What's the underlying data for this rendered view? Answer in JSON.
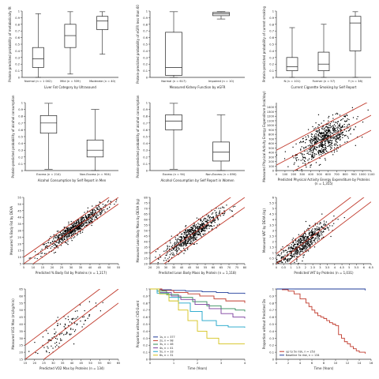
{
  "chart_data": [
    {
      "type": "box",
      "name": "p1",
      "ylabel": "Protein-predicted probability of metabolically fit",
      "xlabel": "Liver Fat Category by Ultrasound",
      "ylim": [
        0,
        1
      ],
      "yticks": [
        0,
        0.1,
        0.2,
        0.3,
        0.4,
        0.5,
        0.6,
        0.7,
        0.8,
        0.9,
        1
      ],
      "categories": [
        "Normal (n = 1 002)",
        "Mild (n = 539)",
        "Moderate (n = 40)"
      ],
      "boxes": [
        {
          "min": 0.0,
          "q1": 0.15,
          "median": 0.28,
          "q3": 0.45,
          "max": 0.96
        },
        {
          "min": 0.05,
          "q1": 0.45,
          "median": 0.63,
          "q3": 0.8,
          "max": 0.99
        },
        {
          "min": 0.35,
          "q1": 0.72,
          "median": 0.85,
          "q3": 0.92,
          "max": 0.99
        }
      ]
    },
    {
      "type": "box",
      "name": "p2",
      "ylabel": "Protein-predicted probability of eGFR less than 60",
      "xlabel": "Measured Kidney Function by eGFR",
      "ylim": [
        0,
        1
      ],
      "yticks": [
        0,
        0.1,
        0.2,
        0.3,
        0.4,
        0.5,
        0.6,
        0.7,
        0.8,
        0.9,
        1
      ],
      "categories": [
        "Normal (n = 617)",
        "Impaired (n = 10)"
      ],
      "boxes": [
        {
          "min": 0.0,
          "q1": 0.03,
          "median": 0.15,
          "q3": 0.68,
          "max": 0.99
        },
        {
          "min": 0.88,
          "q1": 0.93,
          "median": 0.96,
          "q3": 0.98,
          "max": 0.99
        }
      ]
    },
    {
      "type": "box",
      "name": "p3",
      "ylabel": "Protein-predicted probability of current smoking",
      "xlabel": "Current Cigarette Smoking by Self Report",
      "ylim": [
        0,
        1
      ],
      "yticks": [
        0,
        0.1,
        0.2,
        0.3,
        0.4,
        0.5,
        0.6,
        0.7,
        0.8,
        0.9,
        1
      ],
      "categories": [
        "N (n = 101)",
        "Former (n = 57)",
        "Y (n = 38)"
      ],
      "boxes": [
        {
          "min": 0.0,
          "q1": 0.1,
          "median": 0.16,
          "q3": 0.3,
          "max": 0.75
        },
        {
          "min": 0.0,
          "q1": 0.1,
          "median": 0.2,
          "q3": 0.38,
          "max": 0.8
        },
        {
          "min": 0.0,
          "q1": 0.4,
          "median": 0.82,
          "q3": 0.92,
          "max": 0.99
        }
      ]
    },
    {
      "type": "box",
      "name": "p4",
      "ylabel": "Protein-predicted probability of alcohol consumption",
      "xlabel": "Alcohol Consumption by Self Report in Men",
      "ylim": [
        0,
        1
      ],
      "yticks": [
        0,
        0.1,
        0.2,
        0.3,
        0.4,
        0.5,
        0.6,
        0.7,
        0.8,
        0.9,
        1
      ],
      "categories": [
        "Excess (n = 214)",
        "Non-Excess (n = 904)"
      ],
      "boxes": [
        {
          "min": 0.02,
          "q1": 0.55,
          "median": 0.7,
          "q3": 0.81,
          "max": 0.99
        },
        {
          "min": 0.0,
          "q1": 0.2,
          "median": 0.3,
          "q3": 0.45,
          "max": 0.9
        }
      ]
    },
    {
      "type": "box",
      "name": "p5",
      "ylabel": "Protein-predicted probability of alcohol consumption",
      "xlabel": "Alcohol Consumption by Self Report in Women",
      "ylim": [
        0,
        1
      ],
      "yticks": [
        0,
        0.1,
        0.2,
        0.3,
        0.4,
        0.5,
        0.6,
        0.7,
        0.8,
        0.9,
        1
      ],
      "categories": [
        "Excess (n = 94)",
        "Non-Excess (n = 890)"
      ],
      "boxes": [
        {
          "min": 0.02,
          "q1": 0.6,
          "median": 0.73,
          "q3": 0.82,
          "max": 0.99
        },
        {
          "min": 0.0,
          "q1": 0.14,
          "median": 0.27,
          "q3": 0.42,
          "max": 0.82
        }
      ]
    },
    {
      "type": "scatter",
      "name": "p6",
      "ylabel": "Measured Physical Activity Energy Expenditure (kcal/day)",
      "xlabel": "Predicted Physical Activity Energy Expenditure by Proteins",
      "xnote": "(n = 1,355)",
      "xlim": [
        0,
        1100
      ],
      "ylim": [
        0,
        1500
      ],
      "xticks": [
        0,
        100,
        200,
        300,
        400,
        500,
        600,
        700,
        800,
        900,
        1000,
        1100
      ],
      "yticks": [
        0,
        100,
        200,
        300,
        400,
        500,
        600,
        700,
        800,
        900,
        1000,
        1100,
        1200,
        1300,
        1400
      ],
      "ci": {
        "intercept": 120,
        "slope": 1.0,
        "band": 330
      },
      "cloud": {
        "n": 650,
        "xmean": 560,
        "xsd": 160,
        "slope": 1.0,
        "intercept": 120,
        "sd": 190
      }
    },
    {
      "type": "scatter",
      "name": "p7",
      "ylabel": "Measured % Body Fat by DEXA",
      "xlabel": "Predicted % Body Fat by Proteins (n = 1,117)",
      "xlim": [
        5,
        55
      ],
      "ylim": [
        5,
        55
      ],
      "xticks": [
        5,
        10,
        15,
        20,
        25,
        30,
        35,
        40,
        45,
        50,
        55
      ],
      "yticks": [
        5,
        10,
        15,
        20,
        25,
        30,
        35,
        40,
        45,
        50,
        55
      ],
      "ci": {
        "intercept": 0,
        "slope": 1.0,
        "band": 5
      },
      "cloud": {
        "n": 650,
        "xmean": 32,
        "xsd": 8,
        "slope": 1.0,
        "intercept": 0,
        "sd": 2.8
      }
    },
    {
      "type": "scatter",
      "name": "p8",
      "ylabel": "Measured Lean Body Mass by DEXA (kg)",
      "xlabel": "Predicted Lean Body Mass by Protein (n = 1,118)",
      "xlim": [
        20,
        80
      ],
      "ylim": [
        20,
        80
      ],
      "xticks": [
        20,
        25,
        30,
        35,
        40,
        45,
        50,
        55,
        60,
        65,
        70,
        75,
        80
      ],
      "yticks": [
        20,
        25,
        30,
        35,
        40,
        45,
        50,
        55,
        60,
        65,
        70,
        75,
        80
      ],
      "ci": {
        "intercept": 0,
        "slope": 1.0,
        "band": 9
      },
      "cloud": {
        "n": 600,
        "xmean": 47,
        "xsd": 9,
        "slope": 1.0,
        "intercept": 0,
        "sd": 4.5
      }
    },
    {
      "type": "scatter",
      "name": "p9",
      "ylabel": "Measured VAT by DEXA (kg)",
      "xlabel": "Predicted VAT by Proteins (n = 1,031)",
      "xlim": [
        0,
        6.5
      ],
      "ylim": [
        0,
        6
      ],
      "xticks": [
        0,
        0.5,
        1,
        1.5,
        2,
        2.5,
        3,
        3.5,
        4,
        4.5,
        5,
        5.5,
        6,
        6.5
      ],
      "yticks": [
        0,
        0.5,
        1,
        1.5,
        2,
        2.5,
        3,
        3.5,
        4,
        4.5,
        5,
        5.5,
        6
      ],
      "ci": {
        "intercept": 0,
        "slope": 1.0,
        "band": 0.9
      },
      "cloud": {
        "n": 550,
        "xmean": 1.7,
        "xsd": 0.9,
        "slope": 1.0,
        "intercept": 0,
        "sd": 0.5
      }
    },
    {
      "type": "scatter",
      "name": "p10",
      "ylabel": "Measured VO2 Max (mL/kg/min)",
      "xlabel": "Predicted VO2 Max by Proteins (n = 134)",
      "xlim": [
        15,
        65
      ],
      "ylim": [
        15,
        65
      ],
      "xticks": [
        15,
        20,
        25,
        30,
        35,
        40,
        45,
        50,
        55,
        60,
        65
      ],
      "yticks": [
        15,
        20,
        25,
        30,
        35,
        40,
        45,
        50,
        55,
        60,
        65
      ],
      "ci": {
        "intercept": 0,
        "slope": 1.0,
        "band": 10
      },
      "cloud": {
        "n": 110,
        "xmean": 36,
        "xsd": 8,
        "slope": 1.0,
        "intercept": 0,
        "sd": 5
      }
    },
    {
      "type": "line",
      "name": "p11",
      "ylabel": "Proportion without CVD Event",
      "xlabel": "Time (Years)",
      "xlim": [
        0,
        4
      ],
      "ylim": [
        0,
        1
      ],
      "xticks": [
        0,
        1,
        2,
        3,
        4
      ],
      "yticks": [
        0,
        0.1,
        0.2,
        0.3,
        0.4,
        0.5,
        0.6,
        0.7,
        0.8,
        0.9,
        1
      ],
      "series": [
        {
          "name": "1s, n = 377",
          "color": "#1f3b9a",
          "x": [
            0,
            0.4,
            0.9,
            1.5,
            2.2,
            2.8,
            3.3,
            4
          ],
          "y": [
            1,
            0.99,
            0.98,
            0.97,
            0.96,
            0.95,
            0.94,
            0.93
          ]
        },
        {
          "name": "2s, n = 98",
          "color": "#c0392b",
          "x": [
            0,
            0.5,
            1.0,
            1.6,
            2.1,
            2.7,
            3.2,
            4
          ],
          "y": [
            1,
            0.98,
            0.95,
            0.93,
            0.9,
            0.86,
            0.83,
            0.8
          ]
        },
        {
          "name": "3s, n = 46",
          "color": "#2e8b57",
          "x": [
            0,
            0.3,
            0.7,
            1.2,
            1.8,
            2.4,
            3.0,
            3.6,
            4
          ],
          "y": [
            1,
            0.97,
            0.92,
            0.88,
            0.82,
            0.76,
            0.72,
            0.7,
            0.68
          ]
        },
        {
          "name": "4s, n = 41",
          "color": "#7b3f9e",
          "x": [
            0,
            0.4,
            0.9,
            1.3,
            1.9,
            2.5,
            3.0,
            3.5,
            4
          ],
          "y": [
            1,
            0.95,
            0.9,
            0.85,
            0.78,
            0.72,
            0.65,
            0.6,
            0.58
          ]
        },
        {
          "name": "5s, n = 33",
          "color": "#1aa3c9",
          "x": [
            0,
            0.3,
            0.8,
            1.2,
            1.7,
            2.2,
            2.8,
            3.3,
            4
          ],
          "y": [
            1,
            0.94,
            0.88,
            0.8,
            0.68,
            0.55,
            0.48,
            0.46,
            0.45
          ]
        },
        {
          "name": "6s, n = 31",
          "color": "#d4c21a",
          "x": [
            0,
            0.4,
            0.8,
            1.2,
            1.6,
            2.0,
            2.4,
            2.9,
            4
          ],
          "y": [
            1,
            0.93,
            0.83,
            0.7,
            0.55,
            0.4,
            0.3,
            0.22,
            0.22
          ]
        }
      ],
      "legend": "bottom-left"
    },
    {
      "type": "line",
      "name": "p12",
      "ylabel": "Proportion without Predicted Dx",
      "xlabel": "Time (Years)",
      "xlim": [
        0,
        16
      ],
      "ylim": [
        0,
        1
      ],
      "xticks": [
        0,
        2,
        4,
        6,
        8,
        10,
        12,
        14,
        16
      ],
      "yticks": [
        0,
        0.1,
        0.2,
        0.3,
        0.4,
        0.5,
        0.6,
        0.7,
        0.8,
        0.9,
        1
      ],
      "series": [
        {
          "name": "up to 5x risk, n = 253",
          "color": "#c0392b",
          "x": [
            0,
            1,
            2,
            3,
            4,
            5,
            5.5,
            6,
            6.5,
            7,
            7.5,
            8,
            8.5,
            9,
            9.5,
            10,
            10.5,
            11,
            11.5,
            12,
            12.5,
            13,
            13.5,
            14,
            15
          ],
          "y": [
            1,
            0.99,
            0.97,
            0.93,
            0.86,
            0.8,
            0.75,
            0.7,
            0.66,
            0.62,
            0.6,
            0.58,
            0.55,
            0.52,
            0.5,
            0.48,
            0.35,
            0.3,
            0.25,
            0.22,
            0.18,
            0.15,
            0.12,
            0.1,
            0.08
          ]
        },
        {
          "name": "Baseline 5x risk, n = 134",
          "color": "#1f3b9a",
          "x": [
            0,
            15
          ],
          "y": [
            1,
            0.98
          ]
        }
      ],
      "legend": "bottom-left"
    }
  ]
}
